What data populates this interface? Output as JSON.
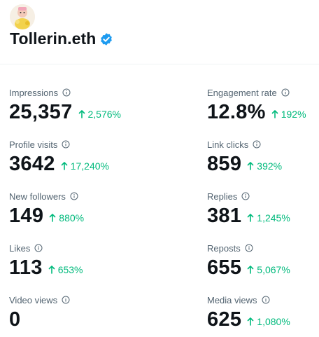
{
  "profile": {
    "name": "Tollerin.eth"
  },
  "metrics": {
    "left": [
      {
        "label": "Impressions",
        "value": "25,357",
        "change": "2,576%"
      },
      {
        "label": "Profile visits",
        "value": "3642",
        "change": "17,240%"
      },
      {
        "label": "New followers",
        "value": "149",
        "change": "880%"
      },
      {
        "label": "Likes",
        "value": "113",
        "change": "653%"
      },
      {
        "label": "Video views",
        "value": "0",
        "change": ""
      }
    ],
    "right": [
      {
        "label": "Engagement rate",
        "value": "12.8%",
        "change": "192%"
      },
      {
        "label": "Link clicks",
        "value": "859",
        "change": "392%"
      },
      {
        "label": "Replies",
        "value": "381",
        "change": "1,245%"
      },
      {
        "label": "Reposts",
        "value": "655",
        "change": "5,067%"
      },
      {
        "label": "Media views",
        "value": "625",
        "change": "1,080%"
      }
    ]
  },
  "colors": {
    "positive": "#00ba7c",
    "verified": "#1d9bf0",
    "label": "#536471",
    "value": "#0f1419"
  },
  "icons": {
    "info": "info-circle-icon",
    "change": "arrow-up-icon",
    "verified": "verified-badge-icon"
  }
}
